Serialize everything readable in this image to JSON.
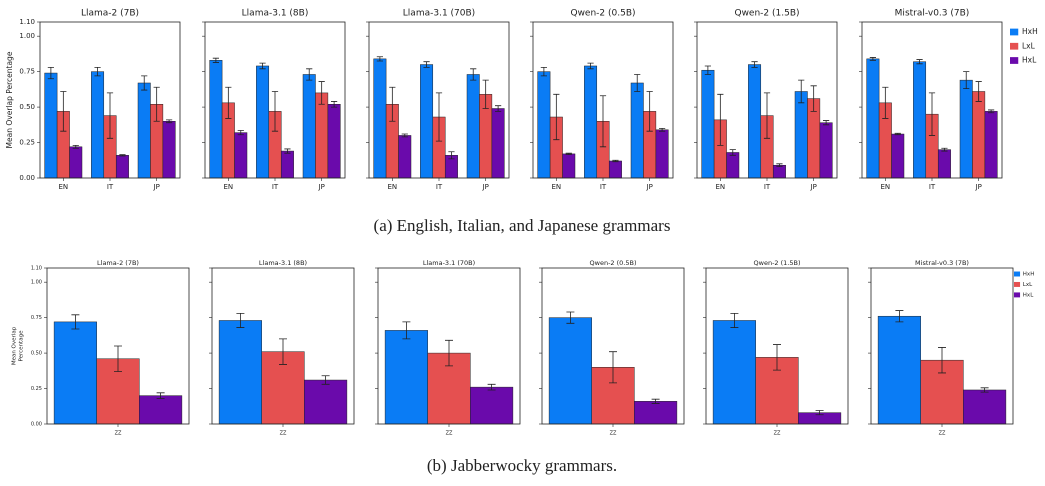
{
  "chart_data": [
    {
      "type": "bar",
      "caption": "(a) English, Italian, and Japanese grammars",
      "ylabel": "Mean Overlap Percentage",
      "ylim": [
        0,
        1.1
      ],
      "yticks": [
        {
          "value": 0,
          "label": "0.00"
        },
        {
          "value": 0.25,
          "label": "0.25"
        },
        {
          "value": 0.5,
          "label": "0.50"
        },
        {
          "value": 0.75,
          "label": "0.75"
        },
        {
          "value": 1,
          "label": "1.00"
        },
        {
          "value": 1.1,
          "label": "1.10"
        }
      ],
      "panels": [
        "Llama-2 (7B)",
        "Llama-3.1 (8B)",
        "Llama-3.1 (70B)",
        "Qwen-2 (0.5B)",
        "Qwen-2 (1.5B)",
        "Mistral-v0.3 (7B)"
      ],
      "categories": [
        "EN",
        "IT",
        "JP"
      ],
      "series": [
        {
          "name": "HxH",
          "color": "#0a7cf5",
          "values": [
            [
              0.74,
              0.75,
              0.67
            ],
            [
              0.83,
              0.79,
              0.73
            ],
            [
              0.84,
              0.8,
              0.73
            ],
            [
              0.75,
              0.79,
              0.67
            ],
            [
              0.76,
              0.8,
              0.61
            ],
            [
              0.84,
              0.82,
              0.69
            ]
          ],
          "errors": [
            [
              0.04,
              0.03,
              0.05
            ],
            [
              0.015,
              0.02,
              0.04
            ],
            [
              0.015,
              0.02,
              0.04
            ],
            [
              0.03,
              0.02,
              0.06
            ],
            [
              0.03,
              0.02,
              0.08
            ],
            [
              0.01,
              0.015,
              0.06
            ]
          ]
        },
        {
          "name": "LxL",
          "color": "#e55050",
          "values": [
            [
              0.47,
              0.44,
              0.52
            ],
            [
              0.53,
              0.47,
              0.6
            ],
            [
              0.52,
              0.43,
              0.59
            ],
            [
              0.43,
              0.4,
              0.47
            ],
            [
              0.41,
              0.44,
              0.56
            ],
            [
              0.53,
              0.45,
              0.61
            ]
          ],
          "errors": [
            [
              0.14,
              0.16,
              0.12
            ],
            [
              0.11,
              0.14,
              0.08
            ],
            [
              0.12,
              0.17,
              0.1
            ],
            [
              0.16,
              0.18,
              0.14
            ],
            [
              0.18,
              0.16,
              0.09
            ],
            [
              0.11,
              0.15,
              0.07
            ]
          ]
        },
        {
          "name": "HxL",
          "color": "#6a0aab",
          "values": [
            [
              0.22,
              0.16,
              0.4
            ],
            [
              0.32,
              0.19,
              0.52
            ],
            [
              0.3,
              0.16,
              0.49
            ],
            [
              0.17,
              0.12,
              0.34
            ],
            [
              0.18,
              0.09,
              0.39
            ],
            [
              0.31,
              0.2,
              0.47
            ]
          ],
          "errors": [
            [
              0.01,
              0.005,
              0.01
            ],
            [
              0.015,
              0.015,
              0.02
            ],
            [
              0.01,
              0.025,
              0.02
            ],
            [
              0.005,
              0.005,
              0.01
            ],
            [
              0.02,
              0.01,
              0.015
            ],
            [
              0.005,
              0.01,
              0.01
            ]
          ]
        }
      ]
    },
    {
      "type": "bar",
      "caption": "(b) Jabberwocky grammars.",
      "ylabel": "Mean Overlap Percentage",
      "ylim": [
        0,
        1.1
      ],
      "yticks": [
        {
          "value": 0,
          "label": "0.00"
        },
        {
          "value": 0.25,
          "label": "0.25"
        },
        {
          "value": 0.5,
          "label": "0.50"
        },
        {
          "value": 0.75,
          "label": "0.75"
        },
        {
          "value": 1,
          "label": "1.00"
        },
        {
          "value": 1.1,
          "label": "1.10"
        }
      ],
      "panels": [
        "Llama-2 (7B)",
        "Llama-3.1 (8B)",
        "Llama-3.1 (70B)",
        "Qwen-2 (0.5B)",
        "Qwen-2 (1.5B)",
        "Mistral-v0.3 (7B)"
      ],
      "categories": [
        "ZZ"
      ],
      "series": [
        {
          "name": "HxH",
          "color": "#0a7cf5",
          "values": [
            [
              0.72
            ],
            [
              0.73
            ],
            [
              0.66
            ],
            [
              0.75
            ],
            [
              0.73
            ],
            [
              0.76
            ]
          ],
          "errors": [
            [
              0.05
            ],
            [
              0.05
            ],
            [
              0.06
            ],
            [
              0.04
            ],
            [
              0.05
            ],
            [
              0.04
            ]
          ]
        },
        {
          "name": "LxL",
          "color": "#e55050",
          "values": [
            [
              0.46
            ],
            [
              0.51
            ],
            [
              0.5
            ],
            [
              0.4
            ],
            [
              0.47
            ],
            [
              0.45
            ]
          ],
          "errors": [
            [
              0.09
            ],
            [
              0.09
            ],
            [
              0.09
            ],
            [
              0.11
            ],
            [
              0.09
            ],
            [
              0.09
            ]
          ]
        },
        {
          "name": "HxL",
          "color": "#6a0aab",
          "values": [
            [
              0.2
            ],
            [
              0.31
            ],
            [
              0.26
            ],
            [
              0.16
            ],
            [
              0.08
            ],
            [
              0.24
            ]
          ],
          "errors": [
            [
              0.02
            ],
            [
              0.03
            ],
            [
              0.02
            ],
            [
              0.015
            ],
            [
              0.015
            ],
            [
              0.015
            ]
          ]
        }
      ]
    }
  ]
}
